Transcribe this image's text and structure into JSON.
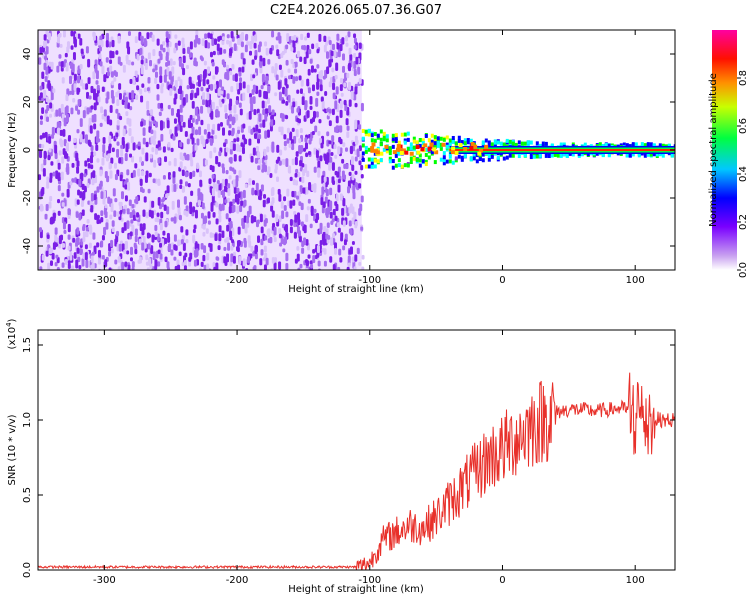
{
  "chart_data": [
    {
      "type": "heatmap",
      "title": "C2E4.2026.065.07.36.G07",
      "xlabel": "Height of straight line (km)",
      "ylabel": "Frequency (Hz)",
      "xlim": [
        -350,
        130
      ],
      "ylim": [
        -50,
        50
      ],
      "x_ticks": [
        -300,
        -200,
        -100,
        0,
        100
      ],
      "x_tick_labels": [
        "-300",
        "-200",
        "-100",
        "0",
        "100"
      ],
      "y_ticks": [
        -40,
        -20,
        0,
        20,
        40
      ],
      "y_tick_labels": [
        "-40",
        "-20",
        "0",
        "20",
        "40"
      ],
      "noise_region_x": [
        -350,
        -106
      ],
      "signal_x_start": -106,
      "signal_center_hz": 0,
      "colorbar": {
        "label": "Normalized spectral amplitude",
        "range": [
          0,
          1
        ],
        "ticks": [
          0.0,
          0.2,
          0.4,
          0.6,
          0.8
        ],
        "tick_labels": [
          "0.0",
          "0.2",
          "0.4",
          "0.6",
          "0.8"
        ],
        "colors": [
          "#ffffff",
          "#8a2be2",
          "#0000ff",
          "#00ffff",
          "#00ff00",
          "#ffff00",
          "#ff8000",
          "#ff0000",
          "#ff00ff"
        ]
      }
    },
    {
      "type": "line",
      "xlabel": "Height of straight line (km)",
      "ylabel": "SNR (10 * v/v)",
      "y_multiplier": "(x10^4)",
      "y_multiplier_base": "(x10",
      "y_multiplier_exp": "4",
      "y_multiplier_close": ")",
      "xlim": [
        -350,
        130
      ],
      "ylim": [
        0,
        1.6
      ],
      "x_ticks": [
        -300,
        -200,
        -100,
        0,
        100
      ],
      "x_tick_labels": [
        "-300",
        "-200",
        "-100",
        "0",
        "100"
      ],
      "y_ticks": [
        0,
        0.5,
        1.0,
        1.5
      ],
      "y_tick_labels": [
        "0.0",
        "0.5",
        "1.0",
        "1.5"
      ],
      "series": [
        {
          "name": "SNR",
          "color": "#e8302a",
          "x": [
            -350,
            -300,
            -250,
            -200,
            -150,
            -110,
            -100,
            -90,
            -80,
            -70,
            -60,
            -50,
            -40,
            -30,
            -20,
            -10,
            0,
            10,
            20,
            30,
            40,
            50,
            60,
            70,
            80,
            90,
            100,
            110,
            120,
            130
          ],
          "y": [
            0.02,
            0.02,
            0.02,
            0.02,
            0.02,
            0.02,
            0.05,
            0.2,
            0.25,
            0.3,
            0.28,
            0.35,
            0.45,
            0.55,
            0.65,
            0.75,
            0.8,
            0.88,
            0.95,
            1.0,
            1.05,
            1.07,
            1.07,
            1.06,
            1.07,
            1.08,
            1.05,
            1.02,
            1.0,
            1.0
          ]
        }
      ]
    }
  ]
}
